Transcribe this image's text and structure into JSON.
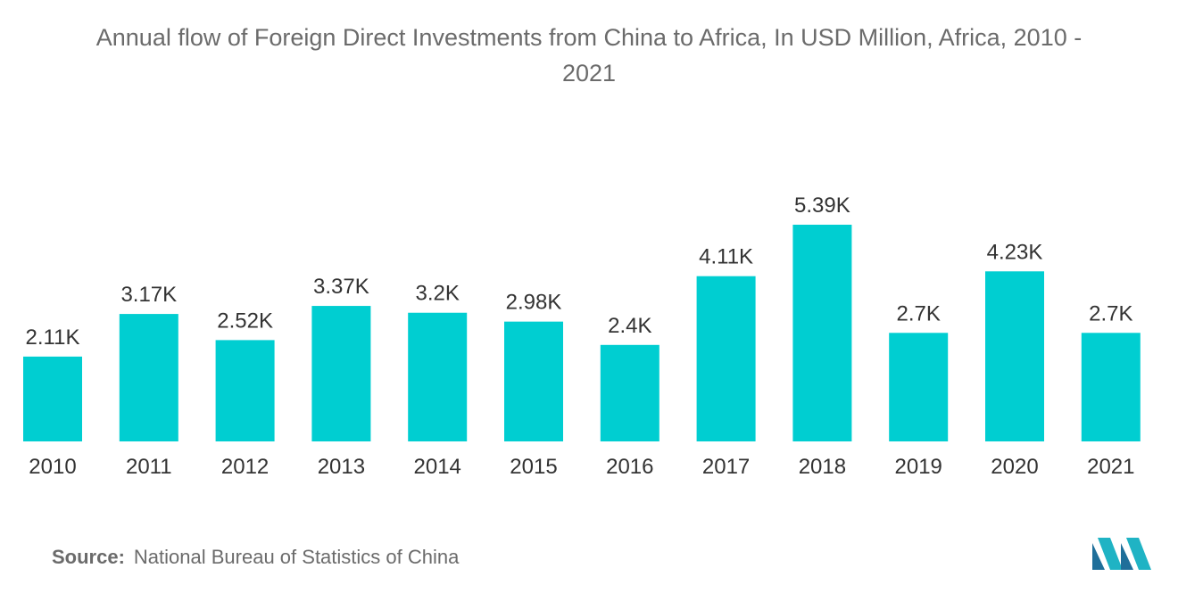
{
  "chart_data": {
    "type": "bar",
    "title_line1": "Annual flow of Foreign Direct Investments from China to Africa, In USD Million, Africa, 2010 -",
    "title_line2": "2021",
    "categories": [
      "2010",
      "2011",
      "2012",
      "2013",
      "2014",
      "2015",
      "2016",
      "2017",
      "2018",
      "2019",
      "2020",
      "2021"
    ],
    "values": [
      2110,
      3170,
      2520,
      3370,
      3200,
      2980,
      2400,
      4110,
      5390,
      2700,
      4230,
      2700
    ],
    "data_labels": [
      "2.11K",
      "3.17K",
      "2.52K",
      "3.37K",
      "3.2K",
      "2.98K",
      "2.4K",
      "4.11K",
      "5.39K",
      "2.7K",
      "4.23K",
      "2.7K"
    ],
    "ylim": [
      0,
      5390
    ],
    "bar_color": "#00ced1",
    "grid": false,
    "legend": "none"
  },
  "source": {
    "label": "Source:",
    "text": "National Bureau of Statistics of China"
  },
  "logo": {
    "icon": "mordor-logo-icon"
  }
}
